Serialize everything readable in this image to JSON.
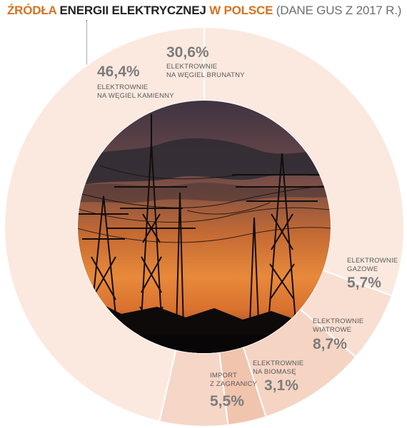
{
  "title": {
    "part1": "ŹRÓDŁA",
    "part2": "ENERGII ELEKTRYCZNEJ",
    "part3": "W POLSCE",
    "part4": "(DANE GUS Z 2017 R.)"
  },
  "colors": {
    "accent": "#d6721e",
    "ring_light": "#fbe9e0",
    "ring_mid": "#f6d6c6",
    "ring_dark": "#f1c4ad",
    "separator": "#ffffff",
    "label_value": "#7c7c7c"
  },
  "chart_data": {
    "type": "pie",
    "variant": "donut",
    "title": "ŹRÓDŁA ENERGII ELEKTRYCZNEJ W POLSCE (DANE GUS Z 2017 R.)",
    "unit": "%",
    "center_image": "power-lines-sunset-photo",
    "slices": [
      {
        "label_lines": [
          "ELEKTROWNIE",
          "NA WĘGIEL BRUNATNY"
        ],
        "value": 30.6,
        "value_label": "30,6%",
        "color": "#fbe9e0"
      },
      {
        "label_lines": [
          "ELEKTROWNIE",
          "GAZOWE"
        ],
        "value": 5.7,
        "value_label": "5,7%",
        "color": "#f8dfd2"
      },
      {
        "label_lines": [
          "ELEKTROWNIE",
          "WIATROWE"
        ],
        "value": 8.7,
        "value_label": "8,7%",
        "color": "#f5d4c3"
      },
      {
        "label_lines": [
          "ELEKTROWNIE",
          "NA BIOMASĘ"
        ],
        "value": 3.1,
        "value_label": "3,1%",
        "color": "#f1c4ad"
      },
      {
        "label_lines": [
          "IMPORT",
          "Z ZAGRANICY"
        ],
        "value": 5.5,
        "value_label": "5,5%",
        "color": "#f6d6c6"
      },
      {
        "label_lines": [
          "ELEKTROWNIE",
          "NA WĘGIEL KAMIENNY"
        ],
        "value": 46.4,
        "value_label": "46,4%",
        "color": "#fbe9e0"
      }
    ]
  }
}
